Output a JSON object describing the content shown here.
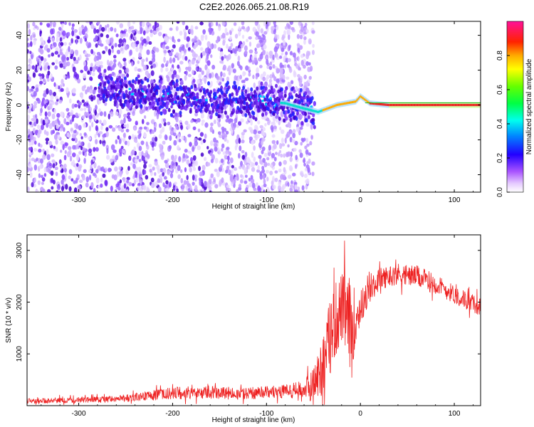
{
  "title": "C2E2.2026.065.21.08.R19",
  "colors": {
    "axis": "#000000",
    "snr_line": "#ee2222",
    "cmap": [
      "#ffffff",
      "#cc88ff",
      "#7722ee",
      "#0000ff",
      "#00ccff",
      "#00ff66",
      "#88ff00",
      "#ffcc00",
      "#ff2222",
      "#ff1188"
    ]
  },
  "chart_data": [
    {
      "id": "spectrogram",
      "type": "heatmap",
      "xlabel": "Height of straight line (km)",
      "ylabel": "Frequency (Hz)",
      "xlim": [
        -355,
        128
      ],
      "ylim": [
        -50,
        48
      ],
      "xticks": [
        -300,
        -200,
        -100,
        0,
        100
      ],
      "yticks": [
        -40,
        -20,
        0,
        20,
        40
      ],
      "ridge": {
        "description_points_x": [
          -270,
          -250,
          -220,
          -200,
          -170,
          -140,
          -120,
          -100,
          -80,
          -60,
          -45,
          -35,
          -25,
          -15,
          -5,
          0,
          10,
          30,
          60,
          90,
          128
        ],
        "freq_hz": [
          10,
          8,
          6,
          4,
          3,
          3,
          2,
          2,
          1,
          -2,
          -4,
          -2,
          0,
          1,
          2,
          5,
          1,
          0,
          0,
          0,
          0
        ]
      },
      "noise_extent_x": [
        -355,
        -50
      ],
      "noise_band_hz": 10,
      "colorbar": {
        "label": "Normalized spectral amplitude",
        "ticks": [
          0.0,
          0.2,
          0.4,
          0.6,
          0.8
        ],
        "range": [
          0,
          1
        ]
      }
    },
    {
      "id": "snr",
      "type": "line",
      "xlabel": "Height of straight line (km)",
      "ylabel": "SNR (10 * v/v)",
      "xlim": [
        -355,
        128
      ],
      "ylim": [
        0,
        3300
      ],
      "xticks": [
        -300,
        -200,
        -100,
        0,
        100
      ],
      "yticks": [
        1000,
        2000,
        3000
      ],
      "series": [
        {
          "name": "SNR",
          "envelope_x": [
            -355,
            -300,
            -260,
            -230,
            -200,
            -160,
            -130,
            -100,
            -80,
            -60,
            -50,
            -40,
            -30,
            -20,
            -10,
            0,
            10,
            20,
            40,
            60,
            80,
            100,
            128
          ],
          "envelope_mean": [
            90,
            110,
            130,
            180,
            240,
            260,
            240,
            250,
            280,
            320,
            400,
            800,
            1500,
            1900,
            1500,
            1900,
            2200,
            2450,
            2550,
            2500,
            2350,
            2150,
            1900
          ],
          "envelope_spread": [
            70,
            80,
            90,
            130,
            180,
            180,
            160,
            180,
            200,
            250,
            500,
            900,
            1100,
            1000,
            1200,
            500,
            350,
            300,
            300,
            300,
            280,
            260,
            250
          ]
        }
      ]
    }
  ]
}
